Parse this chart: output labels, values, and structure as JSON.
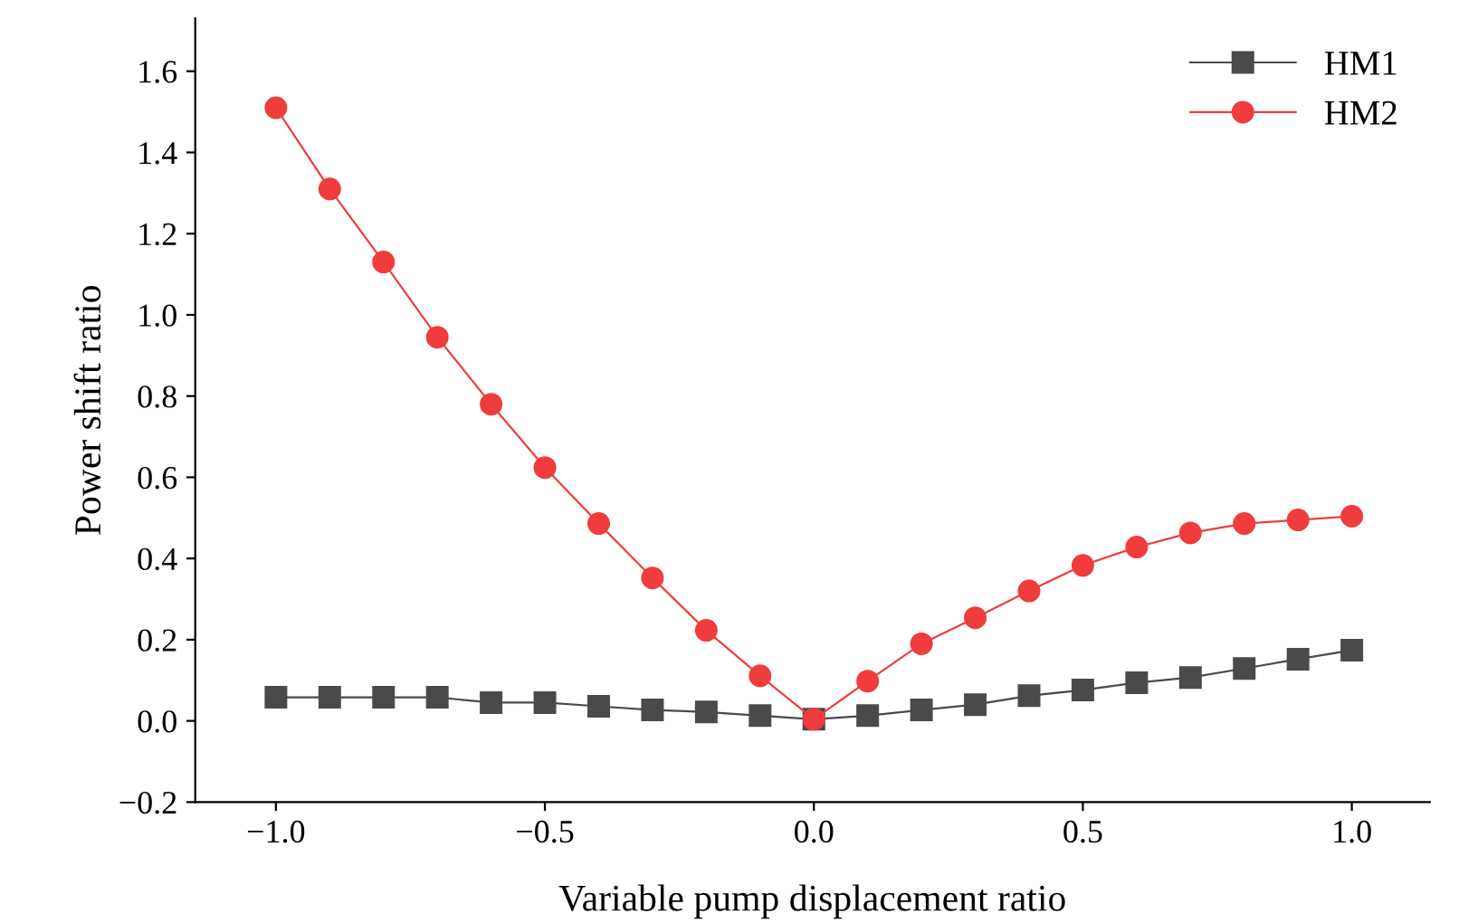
{
  "chart_data": {
    "type": "line",
    "xlabel": "Variable pump displacement ratio",
    "ylabel": "Power shift ratio",
    "x": [
      -1.0,
      -0.9,
      -0.8,
      -0.7,
      -0.6,
      -0.5,
      -0.4,
      -0.3,
      -0.2,
      -0.1,
      0.0,
      0.1,
      0.2,
      0.3,
      0.4,
      0.5,
      0.6,
      0.7,
      0.8,
      0.9,
      1.0
    ],
    "series": [
      {
        "name": "HM1",
        "color": "#4a4a4a",
        "marker": "square",
        "values": [
          0.058,
          0.058,
          0.058,
          0.058,
          0.045,
          0.045,
          0.036,
          0.027,
          0.022,
          0.013,
          0.004,
          0.013,
          0.027,
          0.04,
          0.062,
          0.076,
          0.094,
          0.107,
          0.129,
          0.152,
          0.174
        ]
      },
      {
        "name": "HM2",
        "color": "#f03c3c",
        "marker": "circle",
        "values": [
          1.51,
          1.31,
          1.13,
          0.945,
          0.78,
          0.624,
          0.486,
          0.352,
          0.223,
          0.111,
          0.004,
          0.098,
          0.19,
          0.254,
          0.32,
          0.383,
          0.428,
          0.463,
          0.486,
          0.495,
          0.504
        ]
      }
    ],
    "xlim": [
      -1.15,
      1.145
    ],
    "xticks": [
      {
        "value": -1.0,
        "label": "−1.0"
      },
      {
        "value": -0.5,
        "label": "−0.5"
      },
      {
        "value": 0.0,
        "label": "0.0"
      },
      {
        "value": 0.5,
        "label": "0.5"
      },
      {
        "value": 1.0,
        "label": "1.0"
      }
    ],
    "ylim": [
      -0.2,
      1.73
    ],
    "yticks": [
      {
        "value": -0.2,
        "label": "−0.2"
      },
      {
        "value": 0.0,
        "label": "0.0"
      },
      {
        "value": 0.2,
        "label": "0.2"
      },
      {
        "value": 0.4,
        "label": "0.4"
      },
      {
        "value": 0.6,
        "label": "0.6"
      },
      {
        "value": 0.8,
        "label": "0.8"
      },
      {
        "value": 1.0,
        "label": "1.0"
      },
      {
        "value": 1.2,
        "label": "1.2"
      },
      {
        "value": 1.4,
        "label": "1.4"
      },
      {
        "value": 1.6,
        "label": "1.6"
      }
    ],
    "grid": false,
    "legend": "top right",
    "line_style": "solid"
  }
}
